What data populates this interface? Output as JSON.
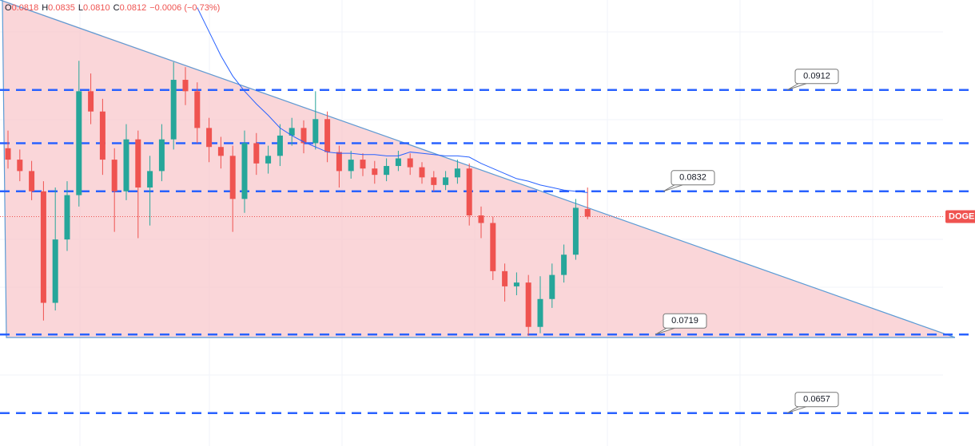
{
  "chart_data": {
    "type": "candlestick",
    "header": [
      {
        "key": "O",
        "value": "0.0818"
      },
      {
        "key": "H",
        "value": "0.0835"
      },
      {
        "key": "L",
        "value": "0.0810"
      },
      {
        "key": "C",
        "value": "0.0812"
      }
    ],
    "change": "−0.0006 (−0.73%)",
    "symbol": "DOGE",
    "up_color": "#26a69a",
    "down_color": "#ef5350",
    "ylim": [
      0.0631,
      0.0983
    ],
    "ohlc": [
      [
        0.0866,
        0.088,
        0.085,
        0.0857
      ],
      [
        0.0857,
        0.0865,
        0.084,
        0.0848
      ],
      [
        0.0848,
        0.0856,
        0.0825,
        0.0832
      ],
      [
        0.0832,
        0.084,
        0.073,
        0.0744
      ],
      [
        0.0744,
        0.0835,
        0.0738,
        0.0794
      ],
      [
        0.0794,
        0.084,
        0.0785,
        0.0829
      ],
      [
        0.0829,
        0.0935,
        0.082,
        0.0911
      ],
      [
        0.0911,
        0.0925,
        0.0885,
        0.0895
      ],
      [
        0.0895,
        0.0905,
        0.0845,
        0.0857
      ],
      [
        0.0857,
        0.0866,
        0.08,
        0.0832
      ],
      [
        0.0832,
        0.0885,
        0.0825,
        0.0873
      ],
      [
        0.0873,
        0.088,
        0.0795,
        0.0835
      ],
      [
        0.0835,
        0.086,
        0.0805,
        0.0848
      ],
      [
        0.0848,
        0.0885,
        0.084,
        0.0873
      ],
      [
        0.0873,
        0.0934,
        0.0865,
        0.092
      ],
      [
        0.092,
        0.093,
        0.09,
        0.0911
      ],
      [
        0.0911,
        0.0918,
        0.087,
        0.0882
      ],
      [
        0.0882,
        0.089,
        0.0855,
        0.0867
      ],
      [
        0.0867,
        0.0875,
        0.085,
        0.086
      ],
      [
        0.086,
        0.0868,
        0.08,
        0.0826
      ],
      [
        0.0826,
        0.088,
        0.0815,
        0.087
      ],
      [
        0.087,
        0.0878,
        0.0845,
        0.0854
      ],
      [
        0.0854,
        0.0868,
        0.0846,
        0.086
      ],
      [
        0.086,
        0.0885,
        0.0852,
        0.0876
      ],
      [
        0.0876,
        0.089,
        0.0868,
        0.0882
      ],
      [
        0.0882,
        0.0888,
        0.0862,
        0.087
      ],
      [
        0.087,
        0.0911,
        0.0865,
        0.0889
      ],
      [
        0.0889,
        0.0895,
        0.0855,
        0.0863
      ],
      [
        0.0863,
        0.0868,
        0.0835,
        0.0848
      ],
      [
        0.0848,
        0.0864,
        0.0842,
        0.0857
      ],
      [
        0.0857,
        0.0862,
        0.0844,
        0.085
      ],
      [
        0.085,
        0.0856,
        0.0838,
        0.0845
      ],
      [
        0.0845,
        0.0858,
        0.084,
        0.0852
      ],
      [
        0.0852,
        0.0864,
        0.0848,
        0.0858
      ],
      [
        0.0858,
        0.0862,
        0.0845,
        0.0851
      ],
      [
        0.0851,
        0.0855,
        0.0838,
        0.0843
      ],
      [
        0.0843,
        0.0848,
        0.0832,
        0.0837
      ],
      [
        0.0837,
        0.0848,
        0.0833,
        0.0843
      ],
      [
        0.0843,
        0.0857,
        0.0838,
        0.085
      ],
      [
        0.085,
        0.0854,
        0.0805,
        0.0813
      ],
      [
        0.0813,
        0.082,
        0.0795,
        0.0807
      ],
      [
        0.0807,
        0.0812,
        0.0762,
        0.0769
      ],
      [
        0.0769,
        0.0775,
        0.0745,
        0.0757
      ],
      [
        0.0757,
        0.0768,
        0.075,
        0.076
      ],
      [
        0.076,
        0.0766,
        0.0718,
        0.0725
      ],
      [
        0.0725,
        0.0765,
        0.072,
        0.0747
      ],
      [
        0.0747,
        0.0775,
        0.074,
        0.0766
      ],
      [
        0.0766,
        0.079,
        0.076,
        0.0782
      ],
      [
        0.0782,
        0.0826,
        0.0778,
        0.0819
      ],
      [
        0.0818,
        0.0835,
        0.081,
        0.0812
      ]
    ],
    "ma": {
      "color": "#2962ff",
      "values": [
        null,
        null,
        null,
        null,
        null,
        null,
        null,
        null,
        null,
        null,
        null,
        null,
        null,
        null,
        null,
        null,
        0.0977,
        0.0958,
        0.0939,
        0.0923,
        0.0911,
        0.0901,
        0.0892,
        0.0882,
        0.0876,
        0.0871,
        0.0867,
        0.0863,
        0.0862,
        0.0862,
        0.0861,
        0.0861,
        0.086,
        0.086,
        0.0863,
        0.0862,
        0.0861,
        0.086,
        0.086,
        0.0859,
        0.0854,
        0.085,
        0.0846,
        0.0842,
        0.084,
        0.0837,
        0.0835,
        0.0833,
        0.0832,
        0.0831
      ]
    },
    "levels": [
      {
        "value": 0.0912,
        "label": "0.0912"
      },
      0.087,
      {
        "value": 0.0832,
        "label": "0.0832"
      },
      {
        "value": 0.0719,
        "label": "0.0719"
      },
      {
        "value": 0.0657,
        "label": "0.0657"
      }
    ],
    "level_color": "#2962ff",
    "last": 0.0812
  }
}
